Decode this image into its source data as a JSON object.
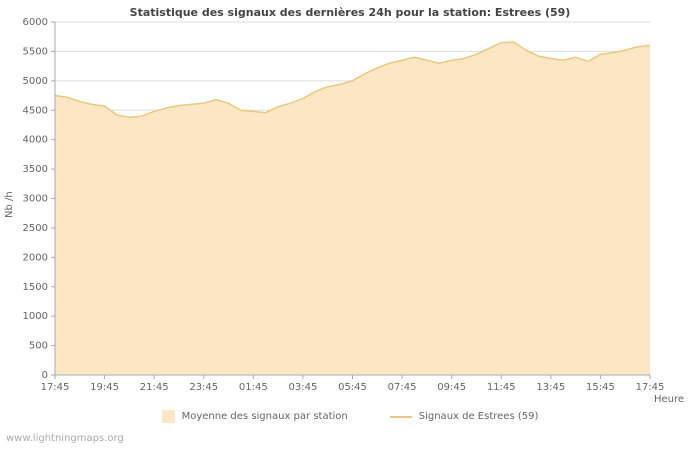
{
  "watermark": "www.lightningmaps.org",
  "colors": {
    "area_fill": "#FBE7C4",
    "line": "#E9C882",
    "grid": "#DDDDDD",
    "axis": "#AAAAAA",
    "tick_text": "#666666",
    "title_text": "#444444"
  },
  "chart_data": {
    "type": "area",
    "title": "Statistique des signaux des dernières 24h pour la station: Estrees (59)",
    "xlabel": "Heure",
    "ylabel": "Nb /h",
    "ylim": [
      0,
      6000
    ],
    "ytick_step": 500,
    "grid": "horizontal",
    "legend_position": "bottom",
    "x_ticks": [
      "17:45",
      "19:45",
      "21:45",
      "23:45",
      "01:45",
      "03:45",
      "05:45",
      "07:45",
      "09:45",
      "11:45",
      "13:45",
      "15:45",
      "17:45"
    ],
    "x": [
      "17:45",
      "18:15",
      "18:45",
      "19:15",
      "19:45",
      "20:15",
      "20:45",
      "21:15",
      "21:45",
      "22:15",
      "22:45",
      "23:15",
      "23:45",
      "00:15",
      "00:45",
      "01:15",
      "01:45",
      "02:15",
      "02:45",
      "03:15",
      "03:45",
      "04:15",
      "04:45",
      "05:15",
      "05:45",
      "06:15",
      "06:45",
      "07:15",
      "07:45",
      "08:15",
      "08:45",
      "09:15",
      "09:45",
      "10:15",
      "10:45",
      "11:15",
      "11:45",
      "12:15",
      "12:45",
      "13:15",
      "13:45",
      "14:15",
      "14:45",
      "15:15",
      "15:45",
      "16:15",
      "16:45",
      "17:15",
      "17:45"
    ],
    "series": [
      {
        "name": "Moyenne des signaux par station",
        "type": "area",
        "color": "#FBE7C4",
        "values": [
          4750,
          4720,
          4650,
          4600,
          4570,
          4420,
          4380,
          4400,
          4480,
          4540,
          4580,
          4600,
          4620,
          4680,
          4620,
          4500,
          4480,
          4460,
          4560,
          4620,
          4700,
          4820,
          4900,
          4940,
          5000,
          5120,
          5220,
          5300,
          5350,
          5400,
          5350,
          5300,
          5350,
          5380,
          5450,
          5550,
          5650,
          5660,
          5520,
          5420,
          5380,
          5350,
          5400,
          5330,
          5450,
          5480,
          5520,
          5580,
          5600
        ]
      },
      {
        "name": "Signaux de Estrees (59)",
        "type": "line",
        "color": "#E9C882",
        "values": [
          4750,
          4720,
          4650,
          4600,
          4570,
          4420,
          4380,
          4400,
          4480,
          4540,
          4580,
          4600,
          4620,
          4680,
          4620,
          4500,
          4480,
          4460,
          4560,
          4620,
          4700,
          4820,
          4900,
          4940,
          5000,
          5120,
          5220,
          5300,
          5350,
          5400,
          5350,
          5300,
          5350,
          5380,
          5450,
          5550,
          5650,
          5660,
          5520,
          5420,
          5380,
          5350,
          5400,
          5330,
          5450,
          5480,
          5520,
          5580,
          5600
        ]
      }
    ],
    "legend": [
      {
        "label": "Moyenne des signaux par station",
        "swatch": "area"
      },
      {
        "label": "Signaux de Estrees (59)",
        "swatch": "line"
      }
    ]
  }
}
